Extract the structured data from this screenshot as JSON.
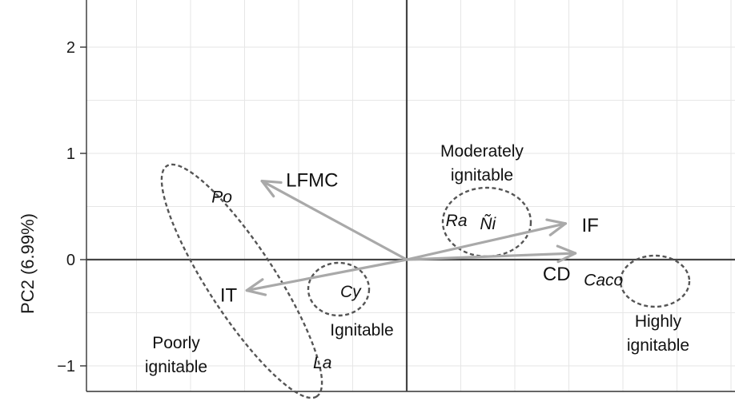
{
  "chart_data": {
    "type": "scatter",
    "subtype": "pca-biplot",
    "ylabel": "PC2 (6.99%)",
    "xlabel": "",
    "x_range": [
      -3.0,
      3.0
    ],
    "ylim": [
      -1.25,
      2.45
    ],
    "y_ticks": [
      {
        "value": 2,
        "label": "2"
      },
      {
        "value": 1,
        "label": "1"
      },
      {
        "value": 0,
        "label": "0"
      },
      {
        "value": -1,
        "label": "−1"
      }
    ],
    "grid": true,
    "colors": {
      "vector": "#a9a9a9",
      "ellipse": "#555555",
      "axis": "#444444",
      "grid": "#e6e6e6"
    },
    "vectors": [
      {
        "name": "LFMC",
        "x": -1.34,
        "y": 0.74
      },
      {
        "name": "IF",
        "x": 1.47,
        "y": 0.34
      },
      {
        "name": "CD",
        "x": 1.56,
        "y": 0.06
      },
      {
        "name": "IT",
        "x": -1.48,
        "y": -0.29
      }
    ],
    "species": [
      {
        "name": "Po",
        "x": -1.71,
        "y": 0.59
      },
      {
        "name": "La",
        "x": -0.78,
        "y": -0.97
      },
      {
        "name": "Cy",
        "x": -0.52,
        "y": -0.3
      },
      {
        "name": "Ra",
        "x": 0.46,
        "y": 0.37
      },
      {
        "name": "Ñi",
        "x": 0.75,
        "y": 0.34
      },
      {
        "name": "Caco",
        "x": 1.82,
        "y": -0.19
      }
    ],
    "groups": [
      {
        "name": "Poorly ignitable",
        "lines": [
          "Poorly",
          "ignitable"
        ],
        "members": [
          "Po",
          "La"
        ]
      },
      {
        "name": "Ignitable",
        "lines": [
          "Ignitable"
        ],
        "members": [
          "Cy"
        ]
      },
      {
        "name": "Moderately ignitable",
        "lines": [
          "Moderately",
          "ignitable"
        ],
        "members": [
          "Ra",
          "Ñi"
        ]
      },
      {
        "name": "Highly ignitable",
        "lines": [
          "Highly",
          "ignitable"
        ],
        "members": [
          "Caco"
        ]
      }
    ]
  }
}
